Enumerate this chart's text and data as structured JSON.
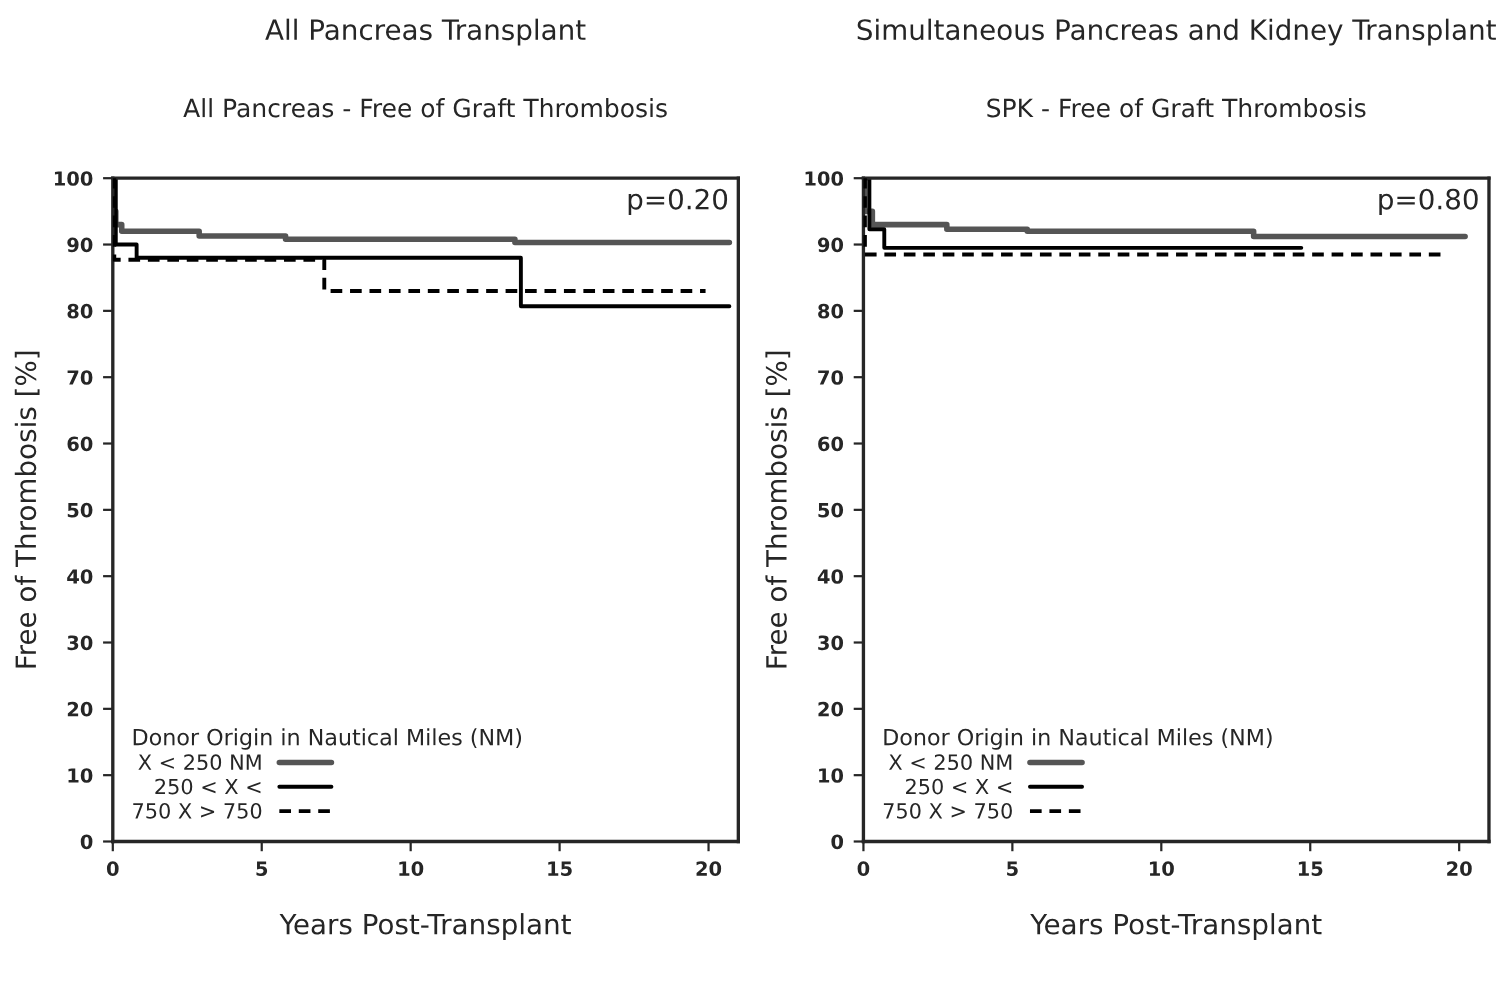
{
  "chart_data": [
    {
      "type": "step",
      "title": "All Pancreas Transplant",
      "subtitle": "All Pancreas - Free of Graft Thrombosis",
      "xlabel": "Years Post-Transplant",
      "ylabel": "Free of Thrombosis [%]",
      "legend_title": "Donor Origin in Nautical Miles (NM)",
      "annotations": [
        "p=0.20"
      ],
      "xlim": [
        0,
        21
      ],
      "xticks": [
        0,
        5,
        10,
        15,
        20
      ],
      "ylim": [
        0,
        100
      ],
      "yticks": [
        0,
        10,
        20,
        30,
        40,
        50,
        60,
        70,
        80,
        90,
        100
      ],
      "grid": false,
      "legend": "bottom left",
      "series": [
        {
          "name": "X < 250 NM",
          "color": "#555555",
          "line_style": "solid",
          "x": [
            0,
            0.05,
            0.1,
            0.3,
            2.9,
            5.8,
            13.5,
            20.7
          ],
          "values": [
            100,
            95,
            93,
            92,
            91.3,
            90.8,
            90.3,
            90.3
          ]
        },
        {
          "name": "250 < X <",
          "color": "#000000",
          "line_style": "solid",
          "x": [
            0,
            0.1,
            0.8,
            13.7,
            20.7
          ],
          "values": [
            100,
            90,
            88,
            80.7,
            80.7
          ]
        },
        {
          "name": "750 X > 750",
          "color": "#000000",
          "line_style": "dashed",
          "x": [
            0,
            0.05,
            7.1,
            19.9
          ],
          "values": [
            100,
            87.7,
            83,
            83
          ]
        }
      ]
    },
    {
      "type": "step",
      "title": "Simultaneous Pancreas and Kidney Transplant",
      "subtitle": "SPK - Free of Graft Thrombosis",
      "xlabel": "Years Post-Transplant",
      "ylabel": "Free of Thrombosis [%]",
      "legend_title": "Donor Origin in Nautical Miles (NM)",
      "annotations": [
        "p=0.80"
      ],
      "xlim": [
        0,
        21
      ],
      "xticks": [
        0,
        5,
        10,
        15,
        20
      ],
      "ylim": [
        0,
        100
      ],
      "yticks": [
        0,
        10,
        20,
        30,
        40,
        50,
        60,
        70,
        80,
        90,
        100
      ],
      "grid": false,
      "legend": "bottom left",
      "series": [
        {
          "name": "X < 250 NM",
          "color": "#555555",
          "line_style": "solid",
          "x": [
            0,
            0.05,
            0.3,
            2.8,
            5.5,
            13.1,
            20.2
          ],
          "values": [
            100,
            95,
            93,
            92.3,
            92,
            91.2,
            91.2
          ]
        },
        {
          "name": "250 < X <",
          "color": "#000000",
          "line_style": "solid",
          "x": [
            0,
            0.2,
            0.7,
            14.7
          ],
          "values": [
            100,
            92.3,
            89.5,
            89.5
          ]
        },
        {
          "name": "750 X > 750",
          "color": "#000000",
          "line_style": "dashed",
          "x": [
            0,
            0.05,
            19.5
          ],
          "values": [
            100,
            88.5,
            88.5
          ]
        }
      ]
    }
  ]
}
